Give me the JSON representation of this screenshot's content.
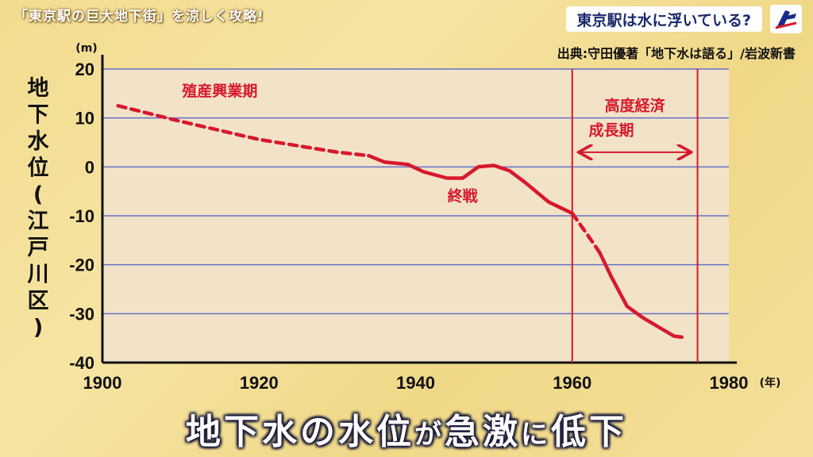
{
  "header": {
    "corner_title": "「東京駅の巨大地下街」を涼しく攻略!",
    "topic": "東京駅は水に浮いている?",
    "source": "出典:守田優著「地下水は語る」/岩波新書"
  },
  "caption": {
    "part1": "地下水の",
    "part2": "水位",
    "part3": "が",
    "part4": "急激",
    "part5": "に",
    "part6": "低下"
  },
  "colors": {
    "curve": "#d8182c",
    "grid": "#6470c8",
    "plot_bg": "#f2e3c8",
    "text": "#111111"
  },
  "chart_data": {
    "type": "line",
    "title": "",
    "ylabel": "地下水位(江戸川区)",
    "y_unit": "(m)",
    "x_unit": "(年)",
    "xlim": [
      1900,
      1980
    ],
    "ylim": [
      -40,
      20
    ],
    "x_ticks": [
      1900,
      1920,
      1940,
      1960,
      1980
    ],
    "y_ticks": [
      20,
      10,
      0,
      -10,
      -20,
      -30,
      -40
    ],
    "grid": "horizontal",
    "series": [
      {
        "style": "dashed",
        "x": [
          1902,
          1910,
          1920,
          1930,
          1934
        ],
        "y": [
          12.5,
          9.3,
          5.6,
          3.0,
          2.3
        ]
      },
      {
        "style": "solid",
        "x": [
          1934,
          1936,
          1939,
          1941,
          1944,
          1946,
          1948,
          1950,
          1952,
          1954,
          1957,
          1960
        ],
        "y": [
          2.3,
          1.0,
          0.5,
          -1.0,
          -2.3,
          -2.3,
          0.0,
          0.3,
          -0.8,
          -3.2,
          -7.2,
          -9.5
        ]
      },
      {
        "style": "dashed",
        "x": [
          1960,
          1962,
          1963.5
        ],
        "y": [
          -9.5,
          -14.0,
          -17.5
        ]
      },
      {
        "style": "solid",
        "x": [
          1963.5,
          1965,
          1967,
          1969,
          1971,
          1973,
          1974
        ],
        "y": [
          -17.5,
          -22.5,
          -28.5,
          -30.8,
          -32.7,
          -34.6,
          -34.8
        ]
      }
    ],
    "markers": [
      1960,
      1976
    ],
    "annotations": [
      {
        "text": "殖産興業期",
        "x": 1915,
        "y": 14.5
      },
      {
        "text": "終戦",
        "x": 1946,
        "y": -7.0
      },
      {
        "text": "高度経済",
        "x": 1968,
        "y": 11.5
      },
      {
        "text": "成長期",
        "x": 1965,
        "y": 6.5
      }
    ],
    "range_arrow": {
      "from": 1961,
      "to": 1975,
      "y": 3.0
    }
  }
}
